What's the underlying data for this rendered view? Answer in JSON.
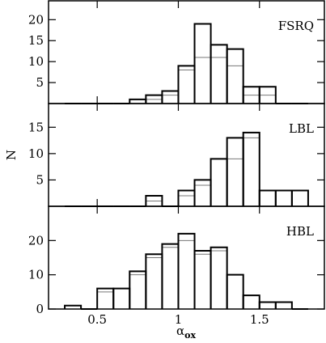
{
  "chart_data": [
    {
      "type": "histogram",
      "title": "FSRQ",
      "bins": [
        0.3,
        0.4,
        0.5,
        0.6,
        0.7,
        0.8,
        0.9,
        1.0,
        1.1,
        1.2,
        1.3,
        1.4,
        1.5,
        1.6,
        1.7,
        1.8
      ],
      "series": [
        {
          "color": "#000000",
          "values": [
            0,
            0,
            0,
            0,
            1,
            2,
            3,
            9,
            19,
            14,
            13,
            4,
            4,
            0,
            0
          ]
        },
        {
          "color": "#777777",
          "values": [
            0,
            0,
            0,
            0,
            0,
            1,
            2,
            8,
            11,
            11,
            9,
            2,
            2,
            0,
            0
          ]
        }
      ],
      "xlim": [
        0.2,
        1.9
      ],
      "ylim": [
        0,
        24.5
      ],
      "yticks": [
        5,
        10,
        15,
        20
      ]
    },
    {
      "type": "histogram",
      "title": "LBL",
      "ylabel": "N",
      "bins": [
        0.3,
        0.4,
        0.5,
        0.6,
        0.7,
        0.8,
        0.9,
        1.0,
        1.1,
        1.2,
        1.3,
        1.4,
        1.5,
        1.6,
        1.7,
        1.8
      ],
      "series": [
        {
          "color": "#000000",
          "values": [
            0,
            0,
            0,
            0,
            0,
            2,
            0,
            3,
            5,
            9,
            13,
            14,
            3,
            3,
            3
          ]
        },
        {
          "color": "#777777",
          "values": [
            0,
            0,
            0,
            0,
            0,
            1,
            0,
            2,
            4,
            9,
            9,
            13,
            3,
            3,
            3
          ]
        }
      ],
      "xlim": [
        0.2,
        1.9
      ],
      "ylim": [
        0,
        19.5
      ],
      "yticks": [
        5,
        10,
        15
      ]
    },
    {
      "type": "histogram",
      "title": "HBL",
      "xlabel": "α",
      "xlabel_subscript": "ox",
      "bins": [
        0.3,
        0.4,
        0.5,
        0.6,
        0.7,
        0.8,
        0.9,
        1.0,
        1.1,
        1.2,
        1.3,
        1.4,
        1.5,
        1.6,
        1.7,
        1.8
      ],
      "series": [
        {
          "color": "#000000",
          "values": [
            1,
            0,
            6,
            6,
            11,
            16,
            19,
            22,
            17,
            18,
            10,
            4,
            2,
            2,
            0
          ]
        },
        {
          "color": "#777777",
          "values": [
            1,
            0,
            5,
            6,
            10,
            15,
            18,
            20,
            16,
            17,
            10,
            4,
            2,
            2,
            0
          ]
        }
      ],
      "xlim": [
        0.2,
        1.9
      ],
      "ylim": [
        0,
        30
      ],
      "yticks": [
        0,
        10,
        20
      ],
      "xticks": [
        0.5,
        1,
        1.5
      ]
    }
  ]
}
